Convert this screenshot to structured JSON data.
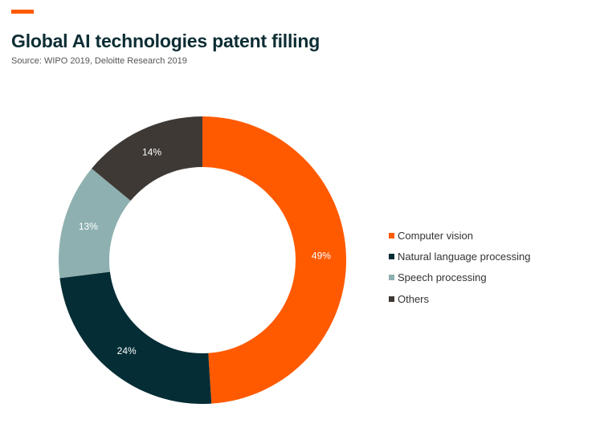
{
  "header": {
    "title": "Global AI technologies patent filling",
    "subtitle": "Source: WIPO 2019, Deloitte Research 2019"
  },
  "chart_data": {
    "type": "pie",
    "title": "Global AI technologies patent filling",
    "subtitle": "Source: WIPO 2019, Deloitte Research 2019",
    "categories": [
      "Computer vision",
      "Natural language processing",
      "Speech processing",
      "Others"
    ],
    "values": [
      49,
      24,
      13,
      14
    ],
    "value_labels": [
      "49%",
      "24%",
      "13%",
      "14%"
    ],
    "colors": [
      "#ff5a00",
      "#052d36",
      "#8fb0b0",
      "#3e3935"
    ],
    "donut": true,
    "legend_position": "right"
  }
}
